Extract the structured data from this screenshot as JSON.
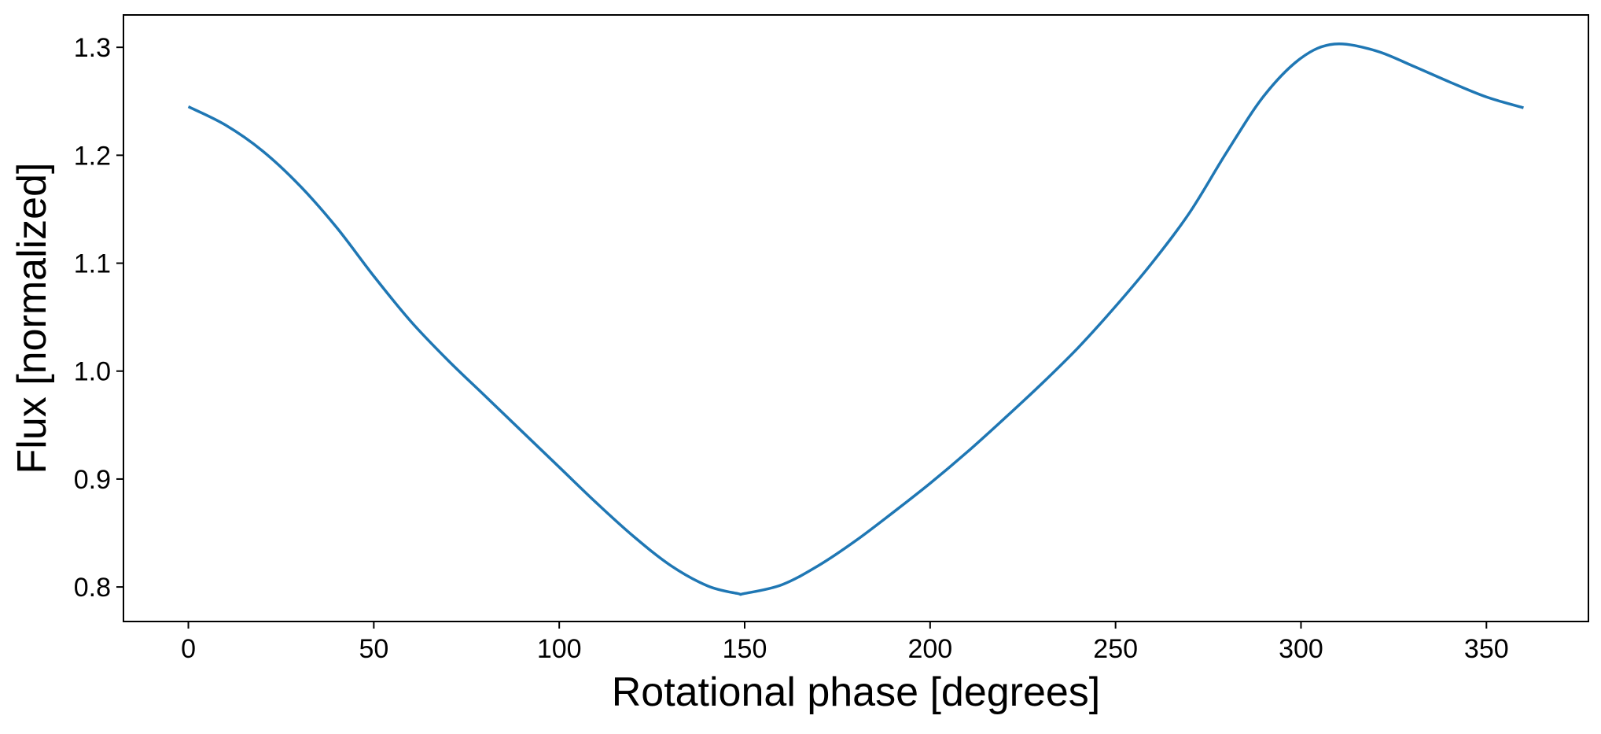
{
  "chart_data": {
    "type": "line",
    "title": "",
    "xlabel": "Rotational phase [degrees]",
    "ylabel": "Flux [normalized]",
    "xlim": [
      -17.5,
      377.5
    ],
    "ylim": [
      0.768,
      1.33
    ],
    "xticks": [
      0,
      50,
      100,
      150,
      200,
      250,
      300,
      350
    ],
    "xtick_labels": [
      "0",
      "50",
      "100",
      "150",
      "200",
      "250",
      "300",
      "350"
    ],
    "yticks": [
      0.8,
      0.9,
      1.0,
      1.1,
      1.2,
      1.3
    ],
    "ytick_labels": [
      "0.8",
      "0.9",
      "1.0",
      "1.1",
      "1.2",
      "1.3"
    ],
    "grid": false,
    "legend": "none",
    "series": [
      {
        "color": "#1f77b4",
        "x": [
          0,
          10,
          20,
          30,
          40,
          50,
          60,
          70,
          80,
          90,
          100,
          110,
          120,
          130,
          140,
          148,
          150,
          160,
          170,
          180,
          190,
          200,
          210,
          220,
          230,
          240,
          250,
          260,
          270,
          280,
          290,
          300,
          309,
          320,
          330,
          340,
          350,
          360
        ],
        "y": [
          1.245,
          1.228,
          1.204,
          1.172,
          1.133,
          1.088,
          1.046,
          1.01,
          0.977,
          0.944,
          0.911,
          0.878,
          0.847,
          0.82,
          0.801,
          0.794,
          0.794,
          0.802,
          0.82,
          0.843,
          0.869,
          0.896,
          0.925,
          0.956,
          0.988,
          1.022,
          1.06,
          1.101,
          1.147,
          1.203,
          1.255,
          1.29,
          1.303,
          1.297,
          1.283,
          1.268,
          1.254,
          1.244
        ]
      }
    ]
  }
}
